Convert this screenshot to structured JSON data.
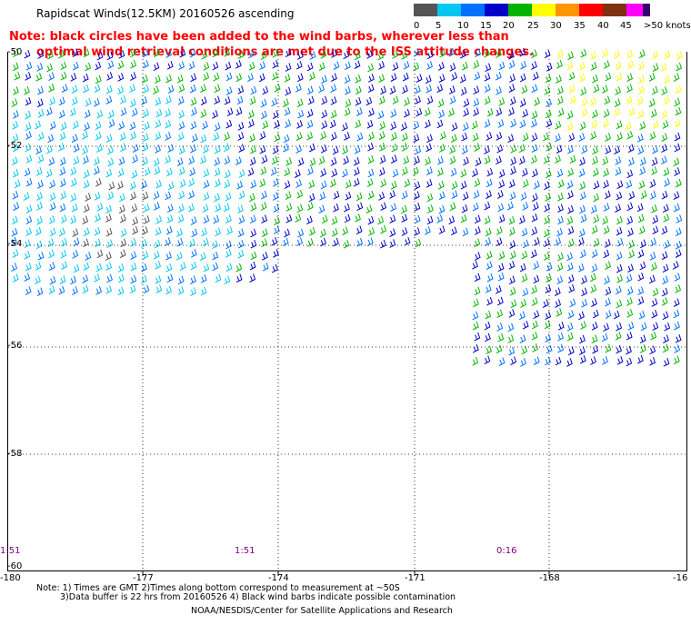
{
  "title": "Rapidscat Winds(12.5KM) 20160526 ascending",
  "note": {
    "line1": "Note: black circles have been added to the wind barbs, wherever less than",
    "line2": "optimal wind retrieval conditions are met due to the ISS attitude changes."
  },
  "legend": {
    "items": [
      {
        "label": "0",
        "color": "#555555"
      },
      {
        "label": "5",
        "color": "#00c8f0"
      },
      {
        "label": "10",
        "color": "#0070ff"
      },
      {
        "label": "15",
        "color": "#0000c8"
      },
      {
        "label": "20",
        "color": "#00b400"
      },
      {
        "label": "25",
        "color": "#ffff00"
      },
      {
        "label": "30",
        "color": "#ff9600"
      },
      {
        "label": "35",
        "color": "#ff0000"
      },
      {
        "label": "40",
        "color": "#803010"
      },
      {
        "label": "45",
        "color": "#ff00ff"
      },
      {
        "label": ">50 knots",
        "color": "#6000a0"
      }
    ],
    "last_color": "#380070"
  },
  "axes": {
    "lon_labels": [
      "-180",
      "-177",
      "-174",
      "-171",
      "-168",
      "-16"
    ],
    "lat_labels": [
      "-50",
      "-52",
      "-54",
      "-56",
      "-58",
      "-60"
    ]
  },
  "time_labels": [
    "1:51",
    "1:51",
    "0:16"
  ],
  "footer": {
    "note1": "Note: 1) Times are GMT 2)Times along bottom correspond to measurement at ~50S",
    "note2": "3)Data buffer is 22 hrs from 20160526 4) Black wind barbs indicate possible contamination",
    "credit": "NOAA/NESDIS/Center for Satellite Applications and Research"
  }
}
